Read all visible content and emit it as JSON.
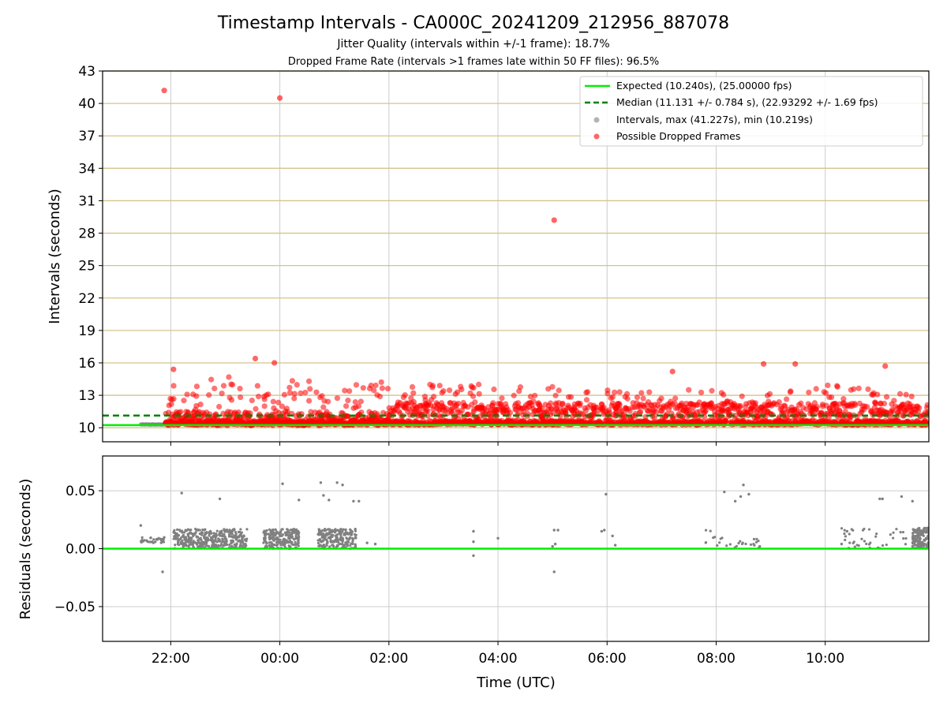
{
  "chart_data": [
    {
      "type": "scatter",
      "title": "Timestamp Intervals - CA000C_20241209_212956_887078",
      "subtitle_1": "Jitter Quality (intervals within +/-1 frame): 18.7%",
      "subtitle_2": "Dropped Frame Rate (intervals >1 frames late within 50 FF files): 96.5%",
      "ylabel": "Intervals (seconds)",
      "ylim": [
        8.7,
        43
      ],
      "yticks": [
        "10",
        "13",
        "16",
        "19",
        "22",
        "25",
        "28",
        "31",
        "34",
        "37",
        "40",
        "43"
      ],
      "xlim_hours": [
        20.75,
        35.9
      ],
      "grid": "on",
      "legend_position": "top-right",
      "legend": [
        {
          "label": "Expected (10.240s), (25.00000 fps)",
          "color": "#00ee00",
          "style": "solid-line"
        },
        {
          "label": "Median (11.131 +/- 0.784 s), (22.93292 +/- 1.69 fps)",
          "color": "#008000",
          "style": "dashed-line"
        },
        {
          "label": "Intervals, max (41.227s), min (10.219s)",
          "color": "#808080",
          "style": "marker"
        },
        {
          "label": "Possible Dropped Frames",
          "color": "#ff0000",
          "style": "marker"
        }
      ],
      "reference_lines": {
        "expected": 10.24,
        "median": 11.131
      },
      "series": [
        {
          "name": "Possible Dropped Frames",
          "color": "#ff0000",
          "outliers": [
            {
              "x": 21.88,
              "y": 41.2
            },
            {
              "x": 24.0,
              "y": 40.5
            },
            {
              "x": 29.03,
              "y": 29.2
            },
            {
              "x": 32.87,
              "y": 15.9
            },
            {
              "x": 33.45,
              "y": 15.9
            },
            {
              "x": 31.2,
              "y": 15.2
            },
            {
              "x": 35.1,
              "y": 15.7
            },
            {
              "x": 23.55,
              "y": 16.4
            },
            {
              "x": 22.05,
              "y": 15.4
            },
            {
              "x": 23.9,
              "y": 16.0
            }
          ],
          "density_profile": [
            {
              "x": 21.9,
              "ymax": 10.4
            },
            {
              "x": 22.0,
              "ymax": 15.4
            },
            {
              "x": 22.3,
              "ymax": 14.5
            },
            {
              "x": 22.6,
              "ymax": 13.5
            },
            {
              "x": 22.9,
              "ymax": 16.0
            },
            {
              "x": 23.2,
              "ymax": 14.0
            },
            {
              "x": 23.5,
              "ymax": 16.3
            },
            {
              "x": 23.75,
              "ymax": 13.5
            },
            {
              "x": 24.0,
              "ymax": 12.5
            },
            {
              "x": 24.3,
              "ymax": 15.3
            },
            {
              "x": 24.6,
              "ymax": 15.5
            },
            {
              "x": 24.9,
              "ymax": 13.0
            },
            {
              "x": 25.2,
              "ymax": 13.5
            },
            {
              "x": 25.5,
              "ymax": 14.5
            },
            {
              "x": 26.0,
              "ymax": 14.2
            },
            {
              "x": 27.0,
              "ymax": 14.0
            },
            {
              "x": 28.0,
              "ymax": 14.0
            },
            {
              "x": 29.0,
              "ymax": 13.8
            },
            {
              "x": 30.0,
              "ymax": 13.5
            },
            {
              "x": 31.0,
              "ymax": 13.5
            },
            {
              "x": 32.0,
              "ymax": 13.6
            },
            {
              "x": 33.0,
              "ymax": 13.2
            },
            {
              "x": 34.0,
              "ymax": 14.0
            },
            {
              "x": 35.0,
              "ymax": 13.8
            },
            {
              "x": 35.9,
              "ymax": 12.5
            }
          ]
        }
      ],
      "grey_intervals": {
        "x_start": 21.45,
        "x_end": 21.9,
        "y": 10.3,
        "color": "#808080"
      }
    },
    {
      "type": "scatter",
      "xlabel": "Time (UTC)",
      "ylabel": "Residuals (seconds)",
      "ylim": [
        -0.08,
        0.08
      ],
      "yticks": [
        "−0.05",
        "0.00",
        "0.05"
      ],
      "xticks": [
        "22:00",
        "00:00",
        "02:00",
        "04:00",
        "06:00",
        "08:00",
        "10:00"
      ],
      "xtick_hours": [
        22,
        24,
        26,
        28,
        30,
        32,
        34
      ],
      "reference_line": {
        "y": 0.0,
        "color": "#00ee00"
      },
      "series": [
        {
          "name": "Residuals",
          "color": "#808080",
          "clusters": [
            {
              "x_start": 21.45,
              "x_end": 21.9,
              "y_min": 0.005,
              "y_max": 0.01,
              "count": 40
            },
            {
              "x_start": 22.05,
              "x_end": 23.4,
              "y_min": 0.0,
              "y_max": 0.017,
              "count": 380
            },
            {
              "x_start": 23.7,
              "x_end": 24.35,
              "y_min": 0.0,
              "y_max": 0.017,
              "count": 220
            },
            {
              "x_start": 24.7,
              "x_end": 25.4,
              "y_min": 0.0,
              "y_max": 0.017,
              "count": 220
            },
            {
              "x_start": 31.75,
              "x_end": 32.0,
              "y_min": 0.005,
              "y_max": 0.016,
              "count": 6
            },
            {
              "x_start": 32.0,
              "x_end": 32.8,
              "y_min": 0.0,
              "y_max": 0.01,
              "count": 20
            },
            {
              "x_start": 34.3,
              "x_end": 35.5,
              "y_min": 0.0,
              "y_max": 0.018,
              "count": 40
            },
            {
              "x_start": 35.6,
              "x_end": 35.9,
              "y_min": 0.0,
              "y_max": 0.018,
              "count": 150
            }
          ],
          "points": [
            {
              "x": 21.85,
              "y": -0.02
            },
            {
              "x": 21.45,
              "y": 0.02
            },
            {
              "x": 22.2,
              "y": 0.048
            },
            {
              "x": 22.9,
              "y": 0.043
            },
            {
              "x": 24.05,
              "y": 0.056
            },
            {
              "x": 24.35,
              "y": 0.042
            },
            {
              "x": 24.75,
              "y": 0.057
            },
            {
              "x": 24.8,
              "y": 0.046
            },
            {
              "x": 24.9,
              "y": 0.042
            },
            {
              "x": 25.05,
              "y": 0.057
            },
            {
              "x": 25.15,
              "y": 0.055
            },
            {
              "x": 25.35,
              "y": 0.041
            },
            {
              "x": 25.45,
              "y": 0.041
            },
            {
              "x": 25.6,
              "y": 0.005
            },
            {
              "x": 25.75,
              "y": 0.004
            },
            {
              "x": 27.55,
              "y": 0.015
            },
            {
              "x": 27.55,
              "y": 0.006
            },
            {
              "x": 27.55,
              "y": -0.006
            },
            {
              "x": 28.0,
              "y": 0.009
            },
            {
              "x": 29.03,
              "y": -0.02
            },
            {
              "x": 29.03,
              "y": 0.016
            },
            {
              "x": 29.05,
              "y": 0.004
            },
            {
              "x": 29.1,
              "y": 0.016
            },
            {
              "x": 29.0,
              "y": 0.002
            },
            {
              "x": 29.9,
              "y": 0.015
            },
            {
              "x": 29.95,
              "y": 0.016
            },
            {
              "x": 29.98,
              "y": 0.047
            },
            {
              "x": 30.1,
              "y": 0.011
            },
            {
              "x": 30.15,
              "y": 0.003
            },
            {
              "x": 32.15,
              "y": 0.049
            },
            {
              "x": 32.35,
              "y": 0.041
            },
            {
              "x": 32.45,
              "y": 0.045
            },
            {
              "x": 32.5,
              "y": 0.055
            },
            {
              "x": 32.6,
              "y": 0.047
            },
            {
              "x": 32.7,
              "y": 0.003
            },
            {
              "x": 32.8,
              "y": 0.002
            },
            {
              "x": 34.3,
              "y": 0.004
            },
            {
              "x": 34.4,
              "y": 0.015
            },
            {
              "x": 35.0,
              "y": 0.043
            },
            {
              "x": 35.05,
              "y": 0.043
            },
            {
              "x": 35.4,
              "y": 0.045
            },
            {
              "x": 35.6,
              "y": 0.041
            }
          ]
        }
      ]
    }
  ]
}
